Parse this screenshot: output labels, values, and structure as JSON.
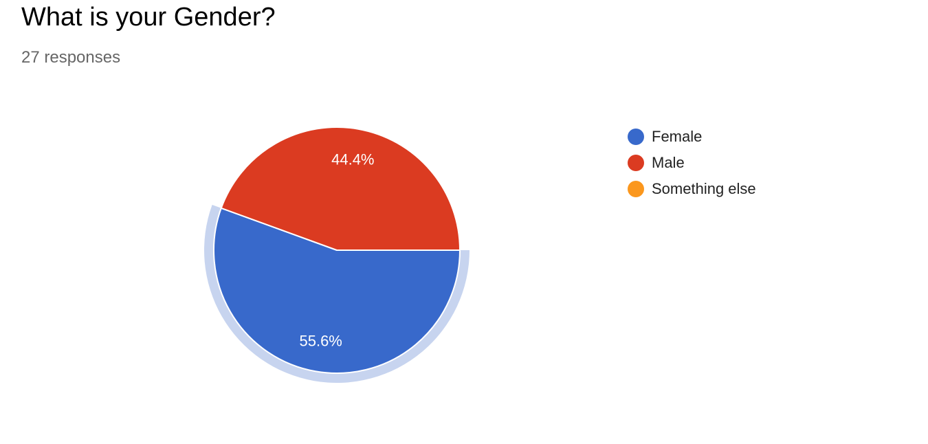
{
  "title": "What is your Gender?",
  "responses_label": "27 responses",
  "colors": {
    "female": "#3869cb",
    "male": "#db3b21",
    "something_else": "#fb971d",
    "highlight": "#c7d4ef"
  },
  "chart_data": {
    "type": "pie",
    "title": "What is your Gender?",
    "total_responses": 27,
    "slices": [
      {
        "label": "Female",
        "value": 15,
        "percent_label": "55.6%",
        "color": "#3869cb",
        "highlighted": true
      },
      {
        "label": "Male",
        "value": 12,
        "percent_label": "44.4%",
        "color": "#db3b21",
        "highlighted": false
      },
      {
        "label": "Something else",
        "value": 0,
        "percent_label": "",
        "color": "#fb971d",
        "highlighted": false
      }
    ],
    "legend_position": "right"
  }
}
